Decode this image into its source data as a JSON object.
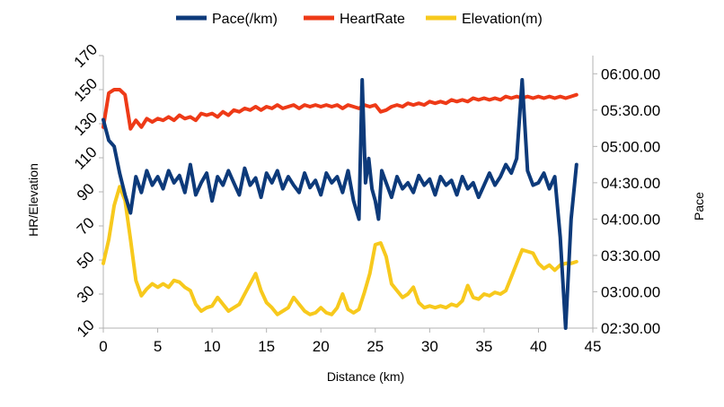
{
  "chart_data": {
    "type": "line",
    "legend_position": "top",
    "grid": false,
    "xlabel": "Distance (km)",
    "ylabel_left": "HR/Elevation",
    "ylabel_right": "Pace",
    "xlim": [
      0,
      45
    ],
    "x_ticks": [
      "0",
      "5",
      "10",
      "15",
      "20",
      "25",
      "30",
      "35",
      "40",
      "45"
    ],
    "ylim_left": [
      10,
      170
    ],
    "y_left_ticks": [
      "10",
      "30",
      "50",
      "70",
      "90",
      "110",
      "130",
      "150",
      "170"
    ],
    "ylim_right": [
      "02:30.00",
      "06:15.00"
    ],
    "y_right_ticks": [
      "02:30.00",
      "03:00.00",
      "03:30.00",
      "04:00.00",
      "04:30.00",
      "05:00.00",
      "05:30.00",
      "06:00.00"
    ],
    "series": [
      {
        "name": "Pace(/km)",
        "color": "#0d3a7a",
        "axis": "right",
        "points": [
          [
            0,
            "05:22.00"
          ],
          [
            0.5,
            "05:05.00"
          ],
          [
            1,
            "05:00.00"
          ],
          [
            1.5,
            "04:38.00"
          ],
          [
            2,
            "04:20.00"
          ],
          [
            2.5,
            "04:05.00"
          ],
          [
            3,
            "04:35.00"
          ],
          [
            3.5,
            "04:22.00"
          ],
          [
            4,
            "04:40.00"
          ],
          [
            4.5,
            "04:28.00"
          ],
          [
            5,
            "04:35.00"
          ],
          [
            5.5,
            "04:25.00"
          ],
          [
            6,
            "04:40.00"
          ],
          [
            6.5,
            "04:30.00"
          ],
          [
            7,
            "04:36.00"
          ],
          [
            7.5,
            "04:22.00"
          ],
          [
            8,
            "04:45.00"
          ],
          [
            8.5,
            "04:20.00"
          ],
          [
            9,
            "04:30.00"
          ],
          [
            9.5,
            "04:38.00"
          ],
          [
            10,
            "04:15.00"
          ],
          [
            10.5,
            "04:35.00"
          ],
          [
            11,
            "04:28.00"
          ],
          [
            11.5,
            "04:40.00"
          ],
          [
            12,
            "04:30.00"
          ],
          [
            12.5,
            "04:20.00"
          ],
          [
            13,
            "04:42.00"
          ],
          [
            13.5,
            "04:28.00"
          ],
          [
            14,
            "04:34.00"
          ],
          [
            14.5,
            "04:18.00"
          ],
          [
            15,
            "04:38.00"
          ],
          [
            15.5,
            "04:30.00"
          ],
          [
            16,
            "04:40.00"
          ],
          [
            16.5,
            "04:25.00"
          ],
          [
            17,
            "04:35.00"
          ],
          [
            17.5,
            "04:28.00"
          ],
          [
            18,
            "04:22.00"
          ],
          [
            18.5,
            "04:38.00"
          ],
          [
            19,
            "04:26.00"
          ],
          [
            19.5,
            "04:32.00"
          ],
          [
            20,
            "04:20.00"
          ],
          [
            20.5,
            "04:38.00"
          ],
          [
            21,
            "04:30.00"
          ],
          [
            21.5,
            "04:35.00"
          ],
          [
            22,
            "04:22.00"
          ],
          [
            22.5,
            "04:40.00"
          ],
          [
            23,
            "04:15.00"
          ],
          [
            23.5,
            "04:00.00"
          ],
          [
            23.8,
            "05:55.00"
          ],
          [
            24.1,
            "04:30.00"
          ],
          [
            24.4,
            "04:50.00"
          ],
          [
            24.7,
            "04:25.00"
          ],
          [
            25,
            "04:15.00"
          ],
          [
            25.3,
            "04:00.00"
          ],
          [
            25.6,
            "04:40.00"
          ],
          [
            26,
            "04:30.00"
          ],
          [
            26.5,
            "04:18.00"
          ],
          [
            27,
            "04:35.00"
          ],
          [
            27.5,
            "04:25.00"
          ],
          [
            28,
            "04:30.00"
          ],
          [
            28.5,
            "04:22.00"
          ],
          [
            29,
            "04:36.00"
          ],
          [
            29.5,
            "04:28.00"
          ],
          [
            30,
            "04:33.00"
          ],
          [
            30.5,
            "04:20.00"
          ],
          [
            31,
            "04:35.00"
          ],
          [
            31.5,
            "04:28.00"
          ],
          [
            32,
            "04:32.00"
          ],
          [
            32.5,
            "04:20.00"
          ],
          [
            33,
            "04:35.00"
          ],
          [
            33.5,
            "04:25.00"
          ],
          [
            34,
            "04:30.00"
          ],
          [
            34.5,
            "04:18.00"
          ],
          [
            35,
            "04:28.00"
          ],
          [
            35.5,
            "04:38.00"
          ],
          [
            36,
            "04:28.00"
          ],
          [
            36.5,
            "04:35.00"
          ],
          [
            37,
            "04:45.00"
          ],
          [
            37.5,
            "04:38.00"
          ],
          [
            38,
            "04:50.00"
          ],
          [
            38.5,
            "05:55.00"
          ],
          [
            39,
            "04:40.00"
          ],
          [
            39.5,
            "04:28.00"
          ],
          [
            40,
            "04:30.00"
          ],
          [
            40.5,
            "04:38.00"
          ],
          [
            41,
            "04:25.00"
          ],
          [
            41.5,
            "04:35.00"
          ],
          [
            42,
            "03:45.00"
          ],
          [
            42.5,
            "02:30.00"
          ],
          [
            43,
            "04:00.00"
          ],
          [
            43.5,
            "04:45.00"
          ]
        ]
      },
      {
        "name": "HeartRate",
        "color": "#ee3a17",
        "axis": "left",
        "points": [
          [
            0,
            128
          ],
          [
            0.5,
            148
          ],
          [
            1,
            150
          ],
          [
            1.5,
            150
          ],
          [
            2,
            147
          ],
          [
            2.5,
            127
          ],
          [
            3,
            132
          ],
          [
            3.5,
            128
          ],
          [
            4,
            133
          ],
          [
            4.5,
            131
          ],
          [
            5,
            133
          ],
          [
            5.5,
            132
          ],
          [
            6,
            134
          ],
          [
            6.5,
            132
          ],
          [
            7,
            135
          ],
          [
            7.5,
            133
          ],
          [
            8,
            134
          ],
          [
            8.5,
            132
          ],
          [
            9,
            136
          ],
          [
            9.5,
            135
          ],
          [
            10,
            136
          ],
          [
            10.5,
            134
          ],
          [
            11,
            137
          ],
          [
            11.5,
            135
          ],
          [
            12,
            138
          ],
          [
            12.5,
            137
          ],
          [
            13,
            139
          ],
          [
            13.5,
            138
          ],
          [
            14,
            140
          ],
          [
            14.5,
            138
          ],
          [
            15,
            140
          ],
          [
            15.5,
            139
          ],
          [
            16,
            141
          ],
          [
            16.5,
            139
          ],
          [
            17,
            140
          ],
          [
            17.5,
            141
          ],
          [
            18,
            139
          ],
          [
            18.5,
            141
          ],
          [
            19,
            140
          ],
          [
            19.5,
            141
          ],
          [
            20,
            140
          ],
          [
            20.5,
            141
          ],
          [
            21,
            140
          ],
          [
            21.5,
            141
          ],
          [
            22,
            139
          ],
          [
            22.5,
            141
          ],
          [
            23,
            140
          ],
          [
            23.5,
            139
          ],
          [
            24,
            141
          ],
          [
            24.5,
            140
          ],
          [
            25,
            141
          ],
          [
            25.5,
            137
          ],
          [
            26,
            138
          ],
          [
            26.5,
            140
          ],
          [
            27,
            141
          ],
          [
            27.5,
            140
          ],
          [
            28,
            142
          ],
          [
            28.5,
            141
          ],
          [
            29,
            142
          ],
          [
            29.5,
            141
          ],
          [
            30,
            143
          ],
          [
            30.5,
            142
          ],
          [
            31,
            143
          ],
          [
            31.5,
            142
          ],
          [
            32,
            144
          ],
          [
            32.5,
            143
          ],
          [
            33,
            144
          ],
          [
            33.5,
            143
          ],
          [
            34,
            145
          ],
          [
            34.5,
            144
          ],
          [
            35,
            145
          ],
          [
            35.5,
            144
          ],
          [
            36,
            145
          ],
          [
            36.5,
            144
          ],
          [
            37,
            146
          ],
          [
            37.5,
            145
          ],
          [
            38,
            146
          ],
          [
            38.5,
            145
          ],
          [
            39,
            146
          ],
          [
            39.5,
            145
          ],
          [
            40,
            146
          ],
          [
            40.5,
            145
          ],
          [
            41,
            146
          ],
          [
            41.5,
            145
          ],
          [
            42,
            146
          ],
          [
            42.5,
            145
          ],
          [
            43,
            146
          ],
          [
            43.5,
            147
          ]
        ]
      },
      {
        "name": "Elevation(m)",
        "color": "#f7c91d",
        "axis": "left",
        "points": [
          [
            0,
            48
          ],
          [
            0.5,
            62
          ],
          [
            1,
            82
          ],
          [
            1.5,
            93
          ],
          [
            2,
            85
          ],
          [
            2.5,
            62
          ],
          [
            3,
            38
          ],
          [
            3.5,
            29
          ],
          [
            4,
            33
          ],
          [
            4.5,
            36
          ],
          [
            5,
            34
          ],
          [
            5.5,
            36
          ],
          [
            6,
            34
          ],
          [
            6.5,
            38
          ],
          [
            7,
            37
          ],
          [
            7.5,
            34
          ],
          [
            8,
            32
          ],
          [
            8.5,
            24
          ],
          [
            9,
            20
          ],
          [
            9.5,
            22
          ],
          [
            10,
            23
          ],
          [
            10.5,
            28
          ],
          [
            11,
            24
          ],
          [
            11.5,
            20
          ],
          [
            12,
            22
          ],
          [
            12.5,
            24
          ],
          [
            13,
            30
          ],
          [
            13.5,
            36
          ],
          [
            14,
            42
          ],
          [
            14.5,
            32
          ],
          [
            15,
            25
          ],
          [
            15.5,
            22
          ],
          [
            16,
            18
          ],
          [
            16.5,
            20
          ],
          [
            17,
            22
          ],
          [
            17.5,
            28
          ],
          [
            18,
            24
          ],
          [
            18.5,
            20
          ],
          [
            19,
            18
          ],
          [
            19.5,
            19
          ],
          [
            20,
            22
          ],
          [
            20.5,
            19
          ],
          [
            21,
            18
          ],
          [
            21.5,
            22
          ],
          [
            22,
            30
          ],
          [
            22.5,
            21
          ],
          [
            23,
            19
          ],
          [
            23.5,
            21
          ],
          [
            24,
            31
          ],
          [
            24.5,
            42
          ],
          [
            25,
            59
          ],
          [
            25.5,
            60
          ],
          [
            26,
            52
          ],
          [
            26.5,
            36
          ],
          [
            27,
            32
          ],
          [
            27.5,
            28
          ],
          [
            28,
            30
          ],
          [
            28.5,
            34
          ],
          [
            29,
            25
          ],
          [
            29.5,
            22
          ],
          [
            30,
            23
          ],
          [
            30.5,
            22
          ],
          [
            31,
            23
          ],
          [
            31.5,
            22
          ],
          [
            32,
            24
          ],
          [
            32.5,
            23
          ],
          [
            33,
            26
          ],
          [
            33.5,
            35
          ],
          [
            34,
            28
          ],
          [
            34.5,
            27
          ],
          [
            35,
            30
          ],
          [
            35.5,
            29
          ],
          [
            36,
            31
          ],
          [
            36.5,
            30
          ],
          [
            37,
            32
          ],
          [
            37.5,
            40
          ],
          [
            38,
            48
          ],
          [
            38.5,
            56
          ],
          [
            39,
            55
          ],
          [
            39.5,
            54
          ],
          [
            40,
            48
          ],
          [
            40.5,
            45
          ],
          [
            41,
            47
          ],
          [
            41.5,
            44
          ],
          [
            42,
            47
          ],
          [
            42.5,
            48
          ],
          [
            43,
            48
          ],
          [
            43.5,
            49
          ]
        ]
      }
    ]
  }
}
